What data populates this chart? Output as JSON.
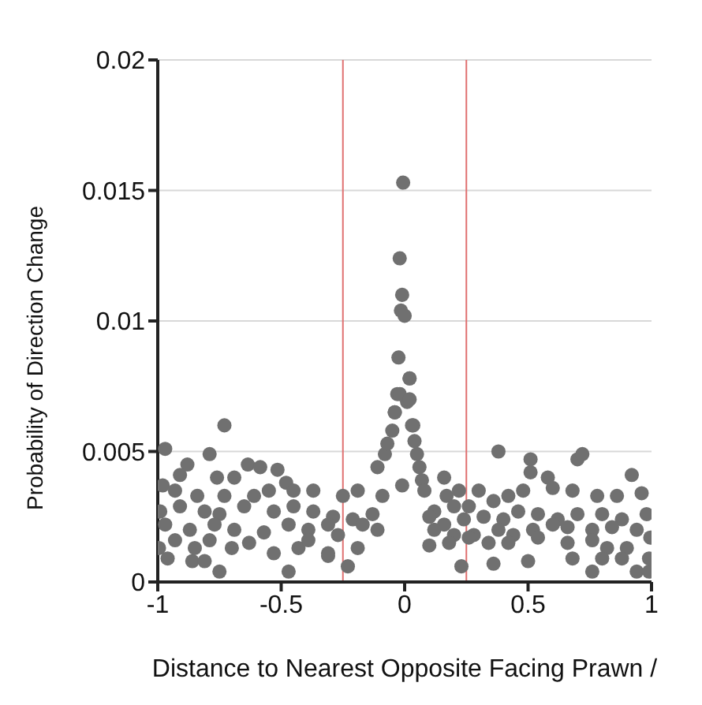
{
  "chart_data": {
    "type": "scatter",
    "xlabel": "Distance to Nearest Opposite Facing Prawn /",
    "ylabel": "Probability of Direction Change",
    "xlim": [
      -1,
      1
    ],
    "xticks": [
      -1,
      -0.5,
      0,
      0.5,
      1
    ],
    "ylim": [
      0,
      0.02
    ],
    "yticks": [
      0,
      0.005,
      0.01,
      0.015,
      0.02
    ],
    "grid": "y",
    "marker": "circle",
    "ref_lines": [
      {
        "axis": "x",
        "value": -0.25,
        "color": "#e07070"
      },
      {
        "axis": "x",
        "value": 0.25,
        "color": "#e07070"
      }
    ],
    "series": [
      {
        "color": "#707070",
        "x": [
          -0.006,
          -0.02,
          -0.01,
          -0.015,
          0,
          -0.025,
          0.02,
          -0.03,
          0.01,
          -0.04,
          0.035,
          -0.73,
          -0.97,
          -0.79,
          -0.635,
          -0.585,
          -0.515,
          -0.88,
          -0.91,
          -0.76,
          -0.69,
          -0.48,
          -0.98,
          -0.93,
          -0.84,
          -0.73,
          -0.61,
          -0.55,
          -0.45,
          -0.37,
          -0.25,
          -0.19,
          -0.11,
          -0.08,
          -0.07,
          -0.05,
          -0.04,
          -0.02,
          -0.01,
          -0.99,
          -0.91,
          -0.81,
          -0.75,
          -0.65,
          -0.53,
          -0.45,
          -0.37,
          -0.29,
          -0.21,
          -0.13,
          -0.09,
          -0.97,
          -0.87,
          -0.77,
          -0.69,
          -0.57,
          -0.47,
          -0.39,
          -0.31,
          -0.27,
          -0.17,
          -0.11,
          -0.995,
          -0.93,
          -0.85,
          -0.79,
          -0.7,
          -0.63,
          -0.53,
          -0.43,
          -0.39,
          -0.31,
          -0.19,
          -0.96,
          -0.86,
          -0.81,
          -0.75,
          -0.47,
          -0.23,
          -0.31,
          0.02,
          0.02,
          0.03,
          0.04,
          0.05,
          0.06,
          0.07,
          0.08,
          0.12,
          0.16,
          0.17,
          0.22,
          0.2,
          0.26,
          0.3,
          0.38,
          0.36,
          0.42,
          0.48,
          0.51,
          0.51,
          0.58,
          0.6,
          0.68,
          0.7,
          0.72,
          0.78,
          0.86,
          0.92,
          0.96,
          0.1,
          0.16,
          0.24,
          0.32,
          0.4,
          0.46,
          0.54,
          0.62,
          0.7,
          0.8,
          0.88,
          0.98,
          0.12,
          0.2,
          0.28,
          0.38,
          0.44,
          0.52,
          0.6,
          0.66,
          0.76,
          0.84,
          0.94,
          0.1,
          0.18,
          0.26,
          0.34,
          0.42,
          0.54,
          0.66,
          0.76,
          0.82,
          0.9,
          0.995,
          0.23,
          0.36,
          0.5,
          0.68,
          0.76,
          0.8,
          0.88,
          0.94,
          0.99,
          0.99
        ],
        "values": [
          0.0153,
          0.0124,
          0.011,
          0.0104,
          0.0102,
          0.0086,
          0.0078,
          0.0072,
          0.0069,
          0.0065,
          0.006,
          0.006,
          0.0051,
          0.0049,
          0.0045,
          0.0044,
          0.0043,
          0.0045,
          0.0041,
          0.004,
          0.004,
          0.0038,
          0.0037,
          0.0035,
          0.0033,
          0.0033,
          0.0033,
          0.0035,
          0.0035,
          0.0035,
          0.0033,
          0.0035,
          0.0044,
          0.0049,
          0.0053,
          0.0058,
          0.0065,
          0.0072,
          0.0037,
          0.0027,
          0.0029,
          0.0027,
          0.0026,
          0.0029,
          0.0027,
          0.0029,
          0.0027,
          0.0025,
          0.0024,
          0.0026,
          0.0033,
          0.0022,
          0.002,
          0.0022,
          0.002,
          0.0019,
          0.0022,
          0.002,
          0.0022,
          0.0018,
          0.0022,
          0.002,
          0.0013,
          0.0016,
          0.0013,
          0.0016,
          0.0013,
          0.0015,
          0.0011,
          0.0013,
          0.0016,
          0.0011,
          0.0013,
          0.0009,
          0.0008,
          0.0008,
          0.0004,
          0.0004,
          0.0006,
          0.001,
          0.0078,
          0.007,
          0.006,
          0.0054,
          0.0049,
          0.0044,
          0.0039,
          0.0035,
          0.0027,
          0.004,
          0.0033,
          0.0035,
          0.0029,
          0.0029,
          0.0035,
          0.005,
          0.0031,
          0.0033,
          0.0035,
          0.0047,
          0.0042,
          0.004,
          0.0036,
          0.0035,
          0.0047,
          0.0049,
          0.0033,
          0.0033,
          0.0041,
          0.0034,
          0.0025,
          0.0022,
          0.0024,
          0.0025,
          0.0024,
          0.0027,
          0.0026,
          0.0024,
          0.0026,
          0.0026,
          0.0024,
          0.0026,
          0.002,
          0.0018,
          0.0018,
          0.002,
          0.0018,
          0.002,
          0.0022,
          0.0021,
          0.002,
          0.0021,
          0.002,
          0.0014,
          0.0015,
          0.0017,
          0.0015,
          0.0015,
          0.0017,
          0.0015,
          0.0016,
          0.0013,
          0.0013,
          0.0017,
          0.0006,
          0.0007,
          0.0008,
          0.0009,
          0.0004,
          0.0009,
          0.0009,
          0.0004,
          0.0004,
          0.0009
        ]
      }
    ]
  }
}
